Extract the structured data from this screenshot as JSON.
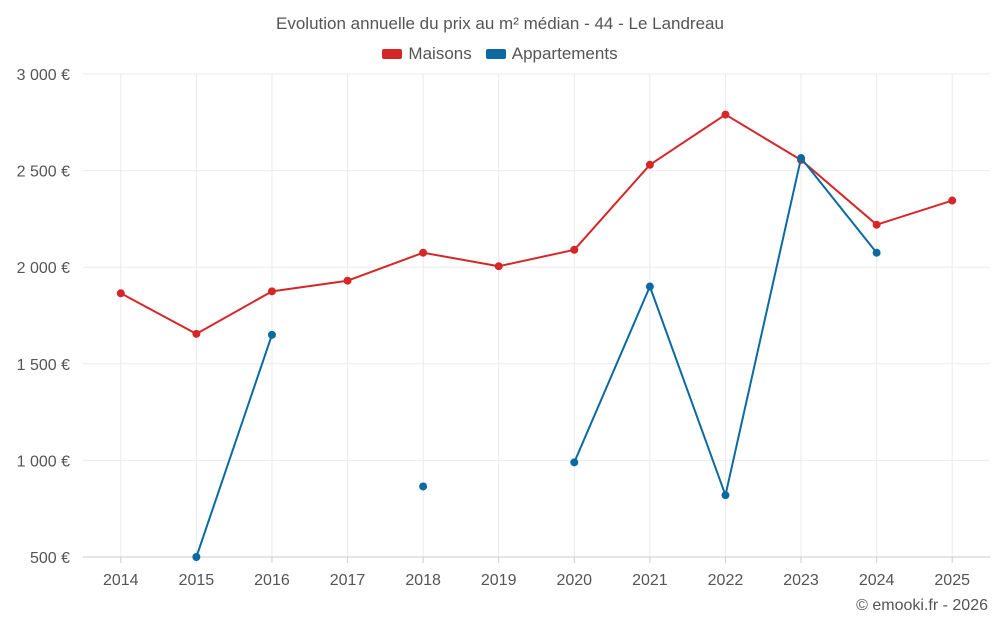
{
  "chart_data": {
    "type": "line",
    "title": "Evolution annuelle du prix au m² médian - 44 - Le Landreau",
    "categories": [
      "2014",
      "2015",
      "2016",
      "2017",
      "2018",
      "2019",
      "2020",
      "2021",
      "2022",
      "2023",
      "2024",
      "2025"
    ],
    "y_tick_labels": [
      "500 €",
      "1 000 €",
      "1 500 €",
      "2 000 €",
      "2 500 €",
      "3 000 €"
    ],
    "y_ticks": [
      500,
      1000,
      1500,
      2000,
      2500,
      3000
    ],
    "ylim": [
      500,
      3000
    ],
    "xlabel": "",
    "ylabel": "",
    "grid": true,
    "legend_position": "top-center",
    "series": [
      {
        "name": "Maisons",
        "color": "#d62728",
        "values": [
          1865,
          1655,
          1875,
          1930,
          2075,
          2005,
          2090,
          2530,
          2790,
          2555,
          2220,
          2345
        ]
      },
      {
        "name": "Appartements",
        "color": "#0b6aa2",
        "values": [
          null,
          500,
          1650,
          null,
          865,
          null,
          990,
          1900,
          820,
          2565,
          2075,
          null
        ]
      }
    ]
  },
  "footer": {
    "copyright": "© emooki.fr - 2026"
  }
}
